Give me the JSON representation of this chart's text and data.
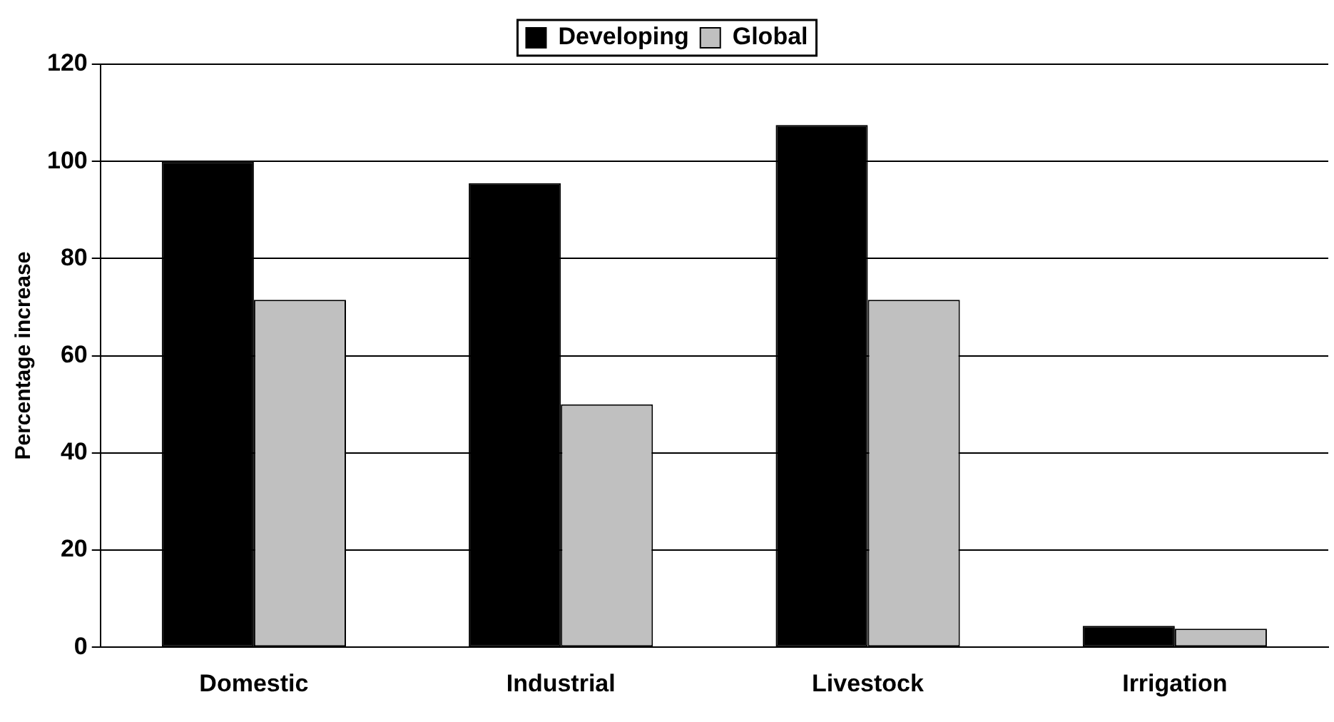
{
  "chart_data": {
    "type": "bar",
    "ylabel": "Percentage increase",
    "categories": [
      "Domestic",
      "Industrial",
      "Livestock",
      "Irrigation"
    ],
    "series": [
      {
        "name": "Developing",
        "color": "#000000",
        "values": [
          100,
          95.5,
          107.5,
          4.4
        ]
      },
      {
        "name": "Global",
        "color": "#c0c0c0",
        "values": [
          71.5,
          50,
          71.5,
          3.8
        ]
      }
    ],
    "ylim": [
      0,
      120
    ],
    "yticks": [
      0,
      20,
      40,
      60,
      80,
      100,
      120
    ],
    "grid": "y",
    "legend": "top"
  }
}
